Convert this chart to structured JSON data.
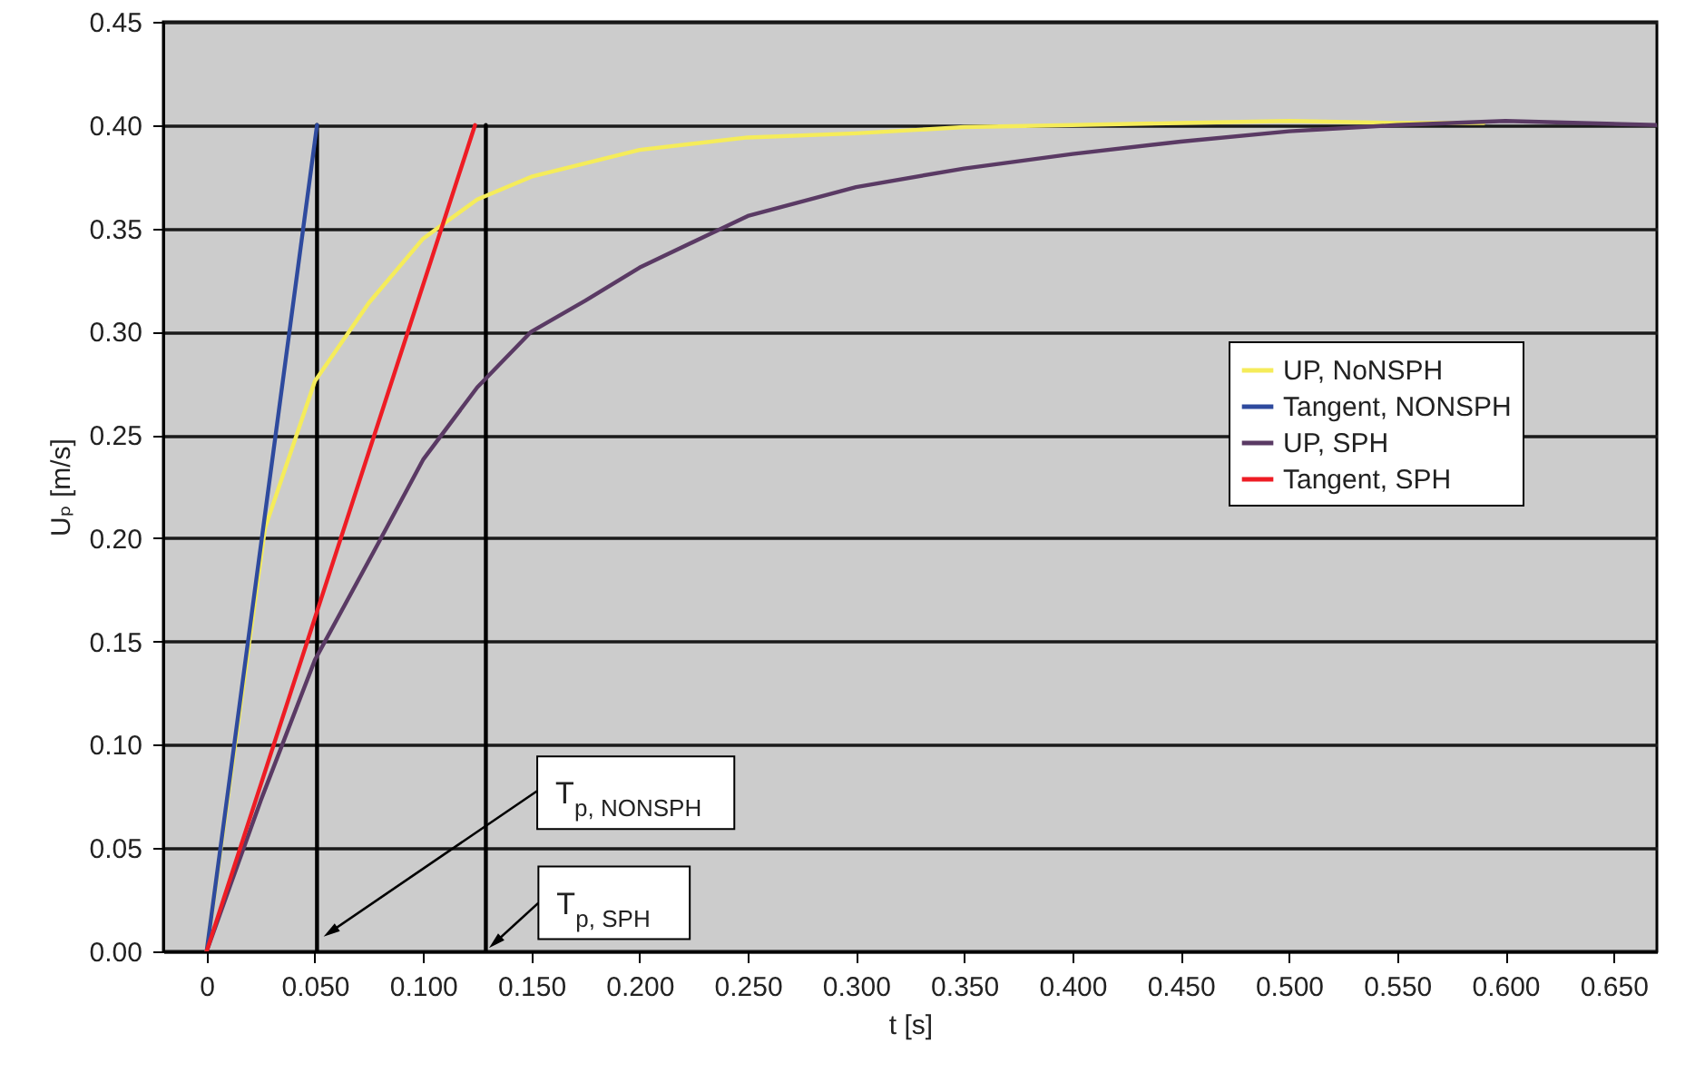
{
  "chart_data": {
    "type": "line",
    "xlabel": "t [s]",
    "ylabel": "Uₚ [m/s]",
    "xlim": [
      -0.02,
      0.67
    ],
    "ylim": [
      0,
      0.45
    ],
    "xticks": [
      0,
      {
        "value": 0.05,
        "label": "0.050"
      },
      {
        "value": 0.1,
        "label": "0.100"
      },
      {
        "value": 0.15,
        "label": "0.150"
      },
      {
        "value": 0.2,
        "label": "0.200"
      },
      {
        "value": 0.25,
        "label": "0.250"
      },
      {
        "value": 0.3,
        "label": "0.300"
      },
      {
        "value": 0.35,
        "label": "0.350"
      },
      {
        "value": 0.4,
        "label": "0.400"
      },
      {
        "value": 0.45,
        "label": "0.450"
      },
      {
        "value": 0.5,
        "label": "0.500"
      },
      {
        "value": 0.55,
        "label": "0.550"
      },
      {
        "value": 0.6,
        "label": "0.600"
      },
      {
        "value": 0.65,
        "label": "0.650"
      }
    ],
    "yticks": [
      {
        "value": 0,
        "label": "0.00"
      },
      0.05,
      {
        "value": 0.1,
        "label": "0.10"
      },
      0.15,
      {
        "value": 0.2,
        "label": "0.20"
      },
      0.25,
      {
        "value": 0.3,
        "label": "0.30"
      },
      0.35,
      {
        "value": 0.4,
        "label": "0.40"
      },
      0.45
    ],
    "grid": "y",
    "legend": "right",
    "line_style": "solid",
    "series": [
      {
        "color": "#000000",
        "x": [
          0.051,
          0.051
        ],
        "values": [
          0,
          0.4
        ]
      },
      {
        "color": "#000000",
        "x": [
          0.129,
          0.129
        ],
        "values": [
          0,
          0.4
        ]
      },
      {
        "name": "UP, NoNSPH",
        "color": "#f5ec5a",
        "x": [
          0,
          0.027,
          0.05,
          0.075,
          0.1,
          0.125,
          0.15,
          0.2,
          0.25,
          0.3,
          0.35,
          0.4,
          0.45,
          0.5,
          0.55,
          0.59
        ],
        "values": [
          0,
          0.205,
          0.276,
          0.314,
          0.345,
          0.364,
          0.375,
          0.388,
          0.394,
          0.396,
          0.399,
          0.4,
          0.401,
          0.402,
          0.401,
          0.401
        ]
      },
      {
        "name": "Tangent, NONSPH",
        "color": "#2e4a9e",
        "x": [
          0,
          0.051
        ],
        "values": [
          0,
          0.4
        ]
      },
      {
        "name": "UP, SPH",
        "color": "#5a3a64",
        "x": [
          0,
          0.025,
          0.05,
          0.079,
          0.1,
          0.125,
          0.15,
          0.175,
          0.2,
          0.25,
          0.3,
          0.35,
          0.4,
          0.45,
          0.5,
          0.55,
          0.6,
          0.67
        ],
        "values": [
          0,
          0.073,
          0.141,
          0.197,
          0.238,
          0.273,
          0.3,
          0.315,
          0.331,
          0.356,
          0.37,
          0.379,
          0.386,
          0.392,
          0.397,
          0.4,
          0.402,
          0.4
        ]
      },
      {
        "name": "Tangent, SPH",
        "color": "#ee1c24",
        "x": [
          0,
          0.124
        ],
        "values": [
          0,
          0.4
        ]
      }
    ],
    "annotations": [
      {
        "text": "T$_{p, NONSPH}$",
        "x": 0.058,
        "y": 0.01
      },
      {
        "text": "T$_{p, SPH}$",
        "x": 0.134,
        "y": 0.005
      }
    ]
  }
}
